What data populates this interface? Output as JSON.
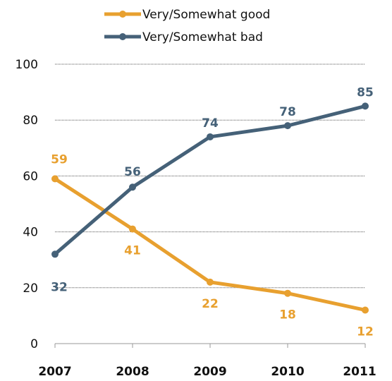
{
  "chart_data": {
    "type": "line",
    "categories": [
      "2007",
      "2008",
      "2009",
      "2010",
      "2011"
    ],
    "series": [
      {
        "name": "Very/Somewhat good",
        "values": [
          59,
          41,
          22,
          18,
          12
        ],
        "color": "#E8A02F",
        "label_position": "mixed"
      },
      {
        "name": "Very/Somewhat bad",
        "values": [
          32,
          56,
          74,
          78,
          85
        ],
        "color": "#456178",
        "label_position": "above"
      }
    ],
    "ylim": [
      0,
      100
    ],
    "yticks": [
      0,
      20,
      40,
      60,
      80,
      100
    ],
    "grid": "dotted horizontal",
    "legend": "top-center",
    "title": "",
    "xlabel": "",
    "ylabel": ""
  }
}
